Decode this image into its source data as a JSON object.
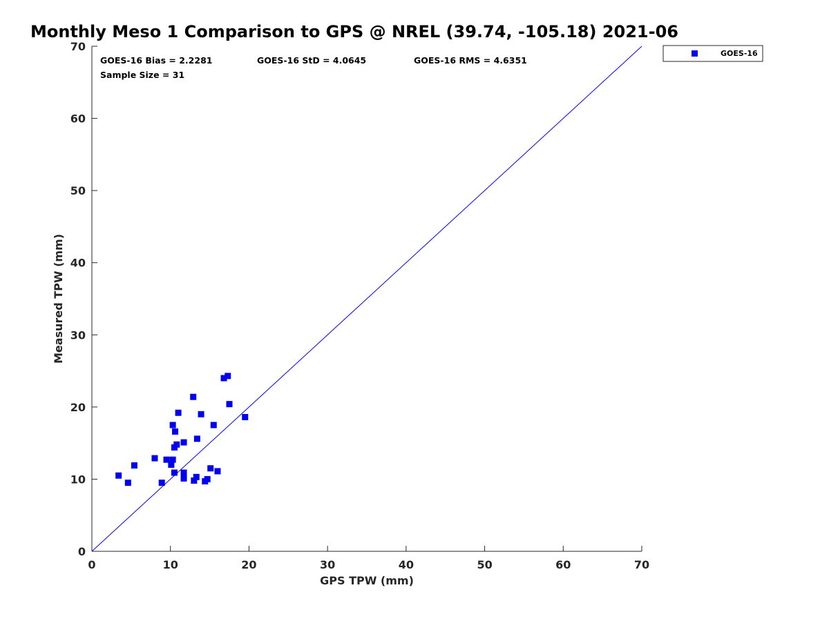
{
  "chart_data": {
    "type": "scatter",
    "title": "Monthly Meso 1 Comparison to GPS @ NREL (39.74, -105.18) 2021-06",
    "xlabel": "GPS TPW (mm)",
    "ylabel": "Measured TPW (mm)",
    "xlim": [
      0,
      70
    ],
    "ylim": [
      0,
      70
    ],
    "xticks": [
      0,
      10,
      20,
      30,
      40,
      50,
      60,
      70
    ],
    "yticks": [
      0,
      10,
      20,
      30,
      40,
      50,
      60,
      70
    ],
    "grid": false,
    "legend_position": "outside-top-right",
    "reference_line": {
      "x": [
        0,
        70
      ],
      "y": [
        0,
        70
      ],
      "color": "#0000ff"
    },
    "stats": {
      "bias": "GOES-16 Bias = 2.2281",
      "std": "GOES-16 StD = 4.0645",
      "rms": "GOES-16 RMS = 4.6351",
      "sample": "Sample Size = 31"
    },
    "series": [
      {
        "name": "GOES-16",
        "color": "#0000ee",
        "marker": "square",
        "x": [
          3.4,
          4.6,
          5.4,
          8.0,
          8.9,
          9.5,
          10.1,
          10.3,
          10.3,
          10.5,
          10.5,
          10.6,
          10.8,
          11.0,
          11.7,
          11.7,
          11.7,
          12.9,
          13.0,
          13.3,
          13.4,
          13.9,
          14.4,
          14.7,
          15.1,
          15.5,
          16.0,
          16.8,
          17.3,
          17.5,
          19.5
        ],
        "y": [
          10.5,
          9.5,
          11.9,
          12.9,
          9.5,
          12.7,
          12.0,
          12.7,
          17.5,
          14.4,
          10.9,
          16.6,
          14.8,
          19.2,
          15.1,
          10.9,
          10.1,
          21.4,
          9.8,
          10.3,
          15.6,
          19.0,
          9.7,
          10.0,
          11.5,
          17.5,
          11.1,
          24.0,
          24.3,
          20.4,
          18.6
        ]
      }
    ]
  }
}
